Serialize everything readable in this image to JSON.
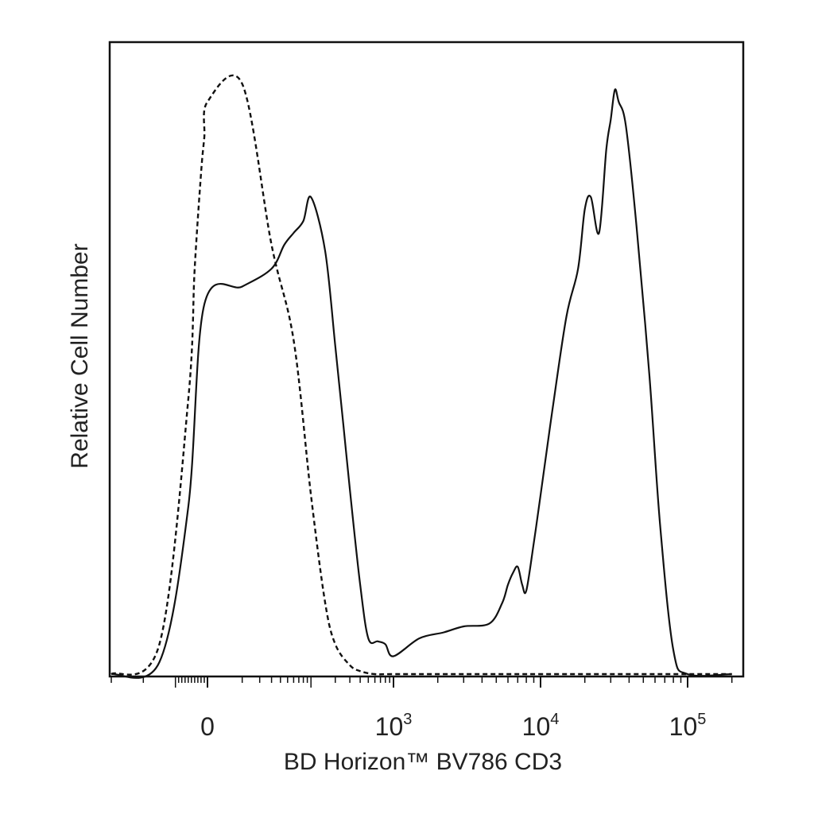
{
  "chart_data": {
    "type": "line",
    "title": "",
    "xlabel": "BD Horizon™ BV786 CD3",
    "ylabel": "Relative Cell Number",
    "x_scale": "biexponential",
    "xlim": [
      -300,
      200000
    ],
    "ylim": [
      0,
      100
    ],
    "y_ticks_labeled": false,
    "grid": false,
    "legend": "none",
    "x_ticks": [
      {
        "value": 0,
        "base": "0",
        "exp": ""
      },
      {
        "value": 1000,
        "base": "10",
        "exp": "3"
      },
      {
        "value": 10000,
        "base": "10",
        "exp": "4"
      },
      {
        "value": 100000,
        "base": "10",
        "exp": "5"
      }
    ],
    "series": [
      {
        "style": "solid",
        "color": "#111111",
        "x": [
          -300,
          -150,
          -60,
          -10,
          10,
          30,
          45,
          60,
          80,
          100,
          150,
          200,
          250,
          300,
          400,
          500,
          650,
          800,
          1000,
          1500,
          2200,
          3000,
          4500,
          5500,
          6000,
          6500,
          7000,
          7500,
          8000,
          9000,
          10000,
          12000,
          15000,
          18000,
          20000,
          22000,
          25000,
          28000,
          30000,
          32000,
          34000,
          38000,
          45000,
          55000,
          65000,
          80000,
          100000,
          200000
        ],
        "y": [
          0,
          2,
          28,
          62,
          65,
          68,
          72,
          74,
          76,
          80,
          71,
          55,
          42,
          31,
          15,
          6,
          5.5,
          5,
          3,
          6,
          7,
          8,
          8.5,
          12,
          15,
          17,
          18,
          15,
          14,
          22,
          30,
          44,
          60,
          68,
          78,
          80,
          74,
          88,
          93,
          98,
          96,
          92,
          75,
          50,
          25,
          4,
          0,
          0
        ]
      },
      {
        "style": "dashed",
        "color": "#111111",
        "x": [
          -300,
          -150,
          -60,
          -40,
          -20,
          -10,
          0,
          10,
          30,
          60,
          100,
          150,
          200,
          300,
          400,
          600,
          1000,
          3000,
          200000
        ],
        "y": [
          0,
          5,
          46,
          68,
          84,
          90,
          96,
          99,
          72,
          56,
          30,
          12,
          5,
          1.5,
          0.5,
          0,
          0,
          0,
          0
        ]
      }
    ]
  }
}
